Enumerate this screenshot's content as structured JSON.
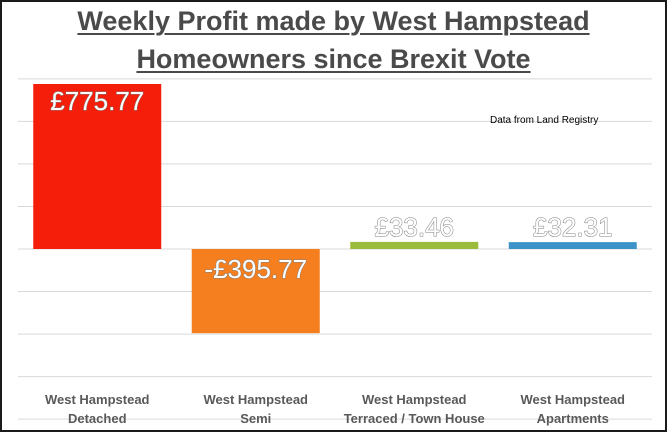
{
  "chart_data": {
    "type": "bar",
    "title_line1": "Weekly Profit made by West Hampstead",
    "title_line2": "Homeowners since Brexit Vote",
    "note": "Data from Land Registry",
    "categories": [
      [
        "West Hampstead",
        "Detached"
      ],
      [
        "West Hampstead",
        "Semi"
      ],
      [
        "West Hampstead",
        "Terraced / Town House"
      ],
      [
        "West Hampstead",
        "Apartments"
      ]
    ],
    "values": [
      775.77,
      -395.77,
      33.46,
      32.31
    ],
    "data_labels": [
      "£775.77",
      "-£395.77",
      "£33.46",
      "£32.31"
    ],
    "colors": [
      "#f51e0a",
      "#f57f1f",
      "#9bbb3c",
      "#3c93c8"
    ],
    "ylim": [
      -800,
      800
    ],
    "grid": true,
    "xlabel": "",
    "ylabel": ""
  }
}
